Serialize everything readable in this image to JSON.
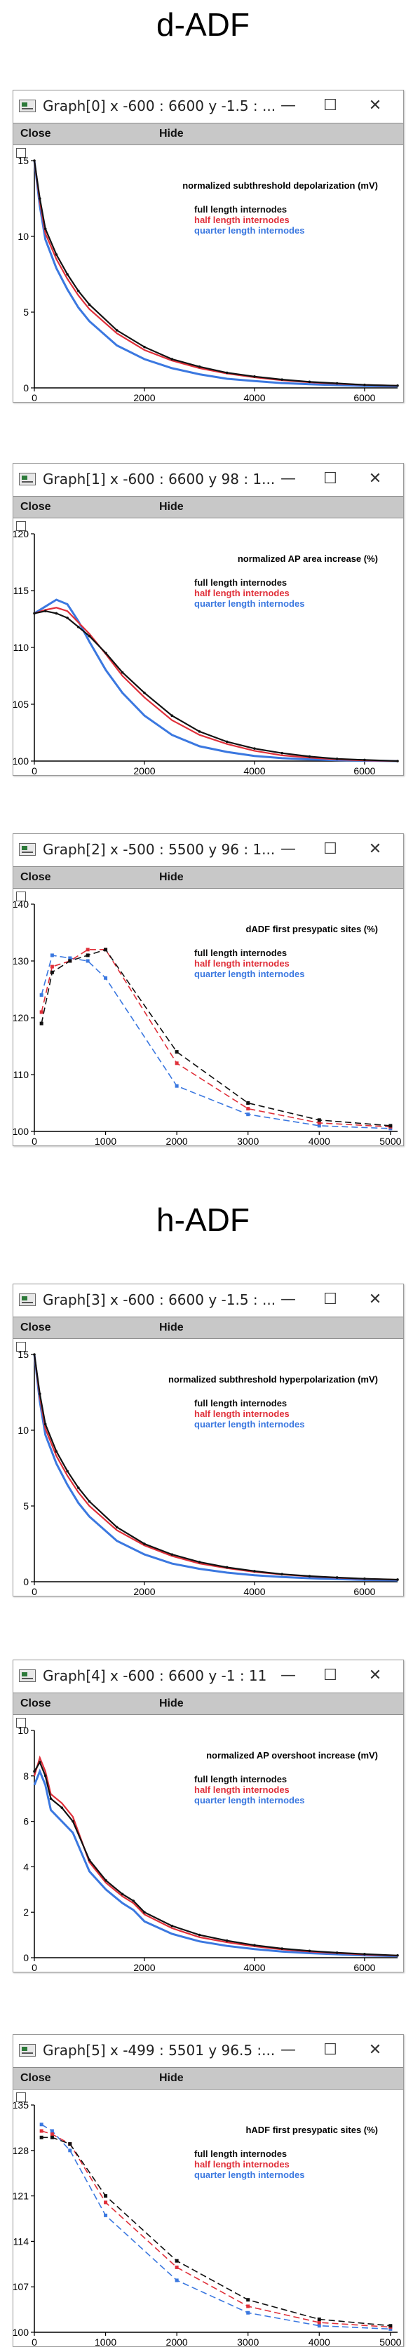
{
  "headings": {
    "dadf": "d-ADF",
    "hadf": "h-ADF"
  },
  "window_controls": {
    "minimize": "—",
    "maximize": "☐",
    "close": "✕"
  },
  "menu": {
    "close": "Close",
    "hide": "Hide"
  },
  "legend": {
    "full": "full length internodes",
    "half": "half length internodes",
    "quarter": "quarter length internodes"
  },
  "colors": {
    "full": "#111111",
    "half": "#e0303a",
    "quarter": "#3b78e0"
  },
  "chart_data": [
    {
      "type": "line",
      "window_title": "Graph[0]  x -600 : 6600  y -1.5 : ...",
      "title": "normalized subthreshold depolarization (mV)",
      "xlim": [
        0,
        6600
      ],
      "ylim": [
        0,
        15
      ],
      "xticks": [
        0,
        2000,
        4000,
        6000
      ],
      "yticks": [
        0,
        5,
        10,
        15
      ],
      "style": "curve",
      "series": [
        {
          "name": "full length internodes",
          "x": [
            0,
            100,
            200,
            400,
            600,
            800,
            1000,
            1500,
            2000,
            2500,
            3000,
            3500,
            4000,
            4500,
            5000,
            5500,
            6000,
            6600
          ],
          "y": [
            15,
            12.5,
            10.5,
            8.8,
            7.5,
            6.4,
            5.5,
            3.8,
            2.7,
            1.9,
            1.4,
            1.0,
            0.75,
            0.55,
            0.4,
            0.3,
            0.2,
            0.15
          ]
        },
        {
          "name": "half length internodes",
          "x": [
            0,
            100,
            200,
            400,
            600,
            800,
            1000,
            1500,
            2000,
            2500,
            3000,
            3500,
            4000,
            4500,
            5000,
            5500,
            6000,
            6600
          ],
          "y": [
            15,
            12.3,
            10.2,
            8.5,
            7.2,
            6.1,
            5.2,
            3.6,
            2.5,
            1.8,
            1.3,
            0.95,
            0.7,
            0.5,
            0.37,
            0.27,
            0.2,
            0.14
          ]
        },
        {
          "name": "quarter length internodes",
          "x": [
            0,
            100,
            200,
            400,
            600,
            800,
            1000,
            1500,
            2000,
            2500,
            3000,
            3500,
            4000,
            4500,
            5000,
            5500,
            6000,
            6600
          ],
          "y": [
            15,
            12.0,
            9.8,
            7.9,
            6.5,
            5.3,
            4.4,
            2.8,
            1.9,
            1.3,
            0.9,
            0.6,
            0.45,
            0.32,
            0.24,
            0.18,
            0.13,
            0.1
          ]
        }
      ]
    },
    {
      "type": "line",
      "window_title": "Graph[1]  x -600 : 6600  y 98 : 1...",
      "title": "normalized AP area increase (%)",
      "xlim": [
        0,
        6600
      ],
      "ylim": [
        100,
        120
      ],
      "xticks": [
        0,
        2000,
        4000,
        6000
      ],
      "yticks": [
        100,
        105,
        110,
        115,
        120
      ],
      "style": "curve",
      "series": [
        {
          "name": "full length internodes",
          "x": [
            0,
            200,
            400,
            600,
            800,
            1000,
            1300,
            1600,
            2000,
            2500,
            3000,
            3500,
            4000,
            4500,
            5000,
            5500,
            6000,
            6600
          ],
          "y": [
            113,
            113.2,
            113.0,
            112.6,
            111.8,
            111.0,
            109.5,
            107.8,
            106.0,
            104.0,
            102.6,
            101.7,
            101.1,
            100.7,
            100.4,
            100.2,
            100.1,
            100
          ]
        },
        {
          "name": "half length internodes",
          "x": [
            0,
            200,
            400,
            600,
            800,
            1000,
            1300,
            1600,
            2000,
            2500,
            3000,
            3500,
            4000,
            4500,
            5000,
            5500,
            6000,
            6600
          ],
          "y": [
            113,
            113.3,
            113.5,
            113.2,
            112.2,
            111.2,
            109.4,
            107.5,
            105.6,
            103.6,
            102.3,
            101.5,
            100.9,
            100.5,
            100.3,
            100.15,
            100.05,
            100
          ]
        },
        {
          "name": "quarter length internodes",
          "x": [
            0,
            200,
            400,
            600,
            800,
            1000,
            1300,
            1600,
            2000,
            2500,
            3000,
            3500,
            4000,
            4500,
            5000,
            5500,
            6000,
            6600
          ],
          "y": [
            113,
            113.6,
            114.2,
            113.8,
            112.3,
            110.5,
            108.0,
            106.0,
            104.0,
            102.3,
            101.3,
            100.8,
            100.45,
            100.25,
            100.15,
            100.08,
            100.03,
            100
          ]
        }
      ]
    },
    {
      "type": "line",
      "window_title": "Graph[2]  x -500 : 5500  y 96 : 1...",
      "title": "dADF first presypatic sites (%)",
      "xlim": [
        0,
        5100
      ],
      "ylim": [
        100,
        140
      ],
      "xticks": [
        0,
        1000,
        2000,
        3000,
        4000,
        5000
      ],
      "yticks": [
        100,
        110,
        120,
        130,
        140
      ],
      "style": "dashed-markers",
      "series": [
        {
          "name": "full length internodes",
          "x": [
            100,
            250,
            500,
            750,
            1000,
            2000,
            3000,
            4000,
            5000
          ],
          "y": [
            119,
            128,
            130,
            131,
            132,
            114,
            105,
            102,
            101
          ]
        },
        {
          "name": "half length internodes",
          "x": [
            100,
            250,
            500,
            750,
            1000,
            2000,
            3000,
            4000,
            5000
          ],
          "y": [
            121,
            129,
            130,
            132,
            132,
            112,
            104,
            101.5,
            100.8
          ]
        },
        {
          "name": "quarter length internodes",
          "x": [
            100,
            250,
            500,
            750,
            1000,
            2000,
            3000,
            4000,
            5000
          ],
          "y": [
            124,
            131,
            130.5,
            130,
            127,
            108,
            103,
            101,
            100.5
          ]
        }
      ]
    },
    {
      "type": "line",
      "window_title": "Graph[3]  x -600 : 6600  y -1.5 : ...",
      "title": "normalized subthreshold hyperpolarization (mV)",
      "xlim": [
        0,
        6600
      ],
      "ylim": [
        0,
        15
      ],
      "xticks": [
        0,
        2000,
        4000,
        6000
      ],
      "yticks": [
        0,
        5,
        10,
        15
      ],
      "style": "curve",
      "series": [
        {
          "name": "full length internodes",
          "x": [
            0,
            100,
            200,
            400,
            600,
            800,
            1000,
            1500,
            2000,
            2500,
            3000,
            3500,
            4000,
            4500,
            5000,
            5500,
            6000,
            6600
          ],
          "y": [
            15,
            12.4,
            10.4,
            8.6,
            7.3,
            6.2,
            5.3,
            3.6,
            2.5,
            1.8,
            1.3,
            0.95,
            0.7,
            0.5,
            0.37,
            0.28,
            0.2,
            0.14
          ]
        },
        {
          "name": "half length internodes",
          "x": [
            0,
            100,
            200,
            400,
            600,
            800,
            1000,
            1500,
            2000,
            2500,
            3000,
            3500,
            4000,
            4500,
            5000,
            5500,
            6000,
            6600
          ],
          "y": [
            15,
            12.2,
            10.1,
            8.3,
            7.0,
            5.9,
            5.0,
            3.4,
            2.4,
            1.7,
            1.2,
            0.9,
            0.65,
            0.48,
            0.35,
            0.26,
            0.19,
            0.13
          ]
        },
        {
          "name": "quarter length internodes",
          "x": [
            0,
            100,
            200,
            400,
            600,
            800,
            1000,
            1500,
            2000,
            2500,
            3000,
            3500,
            4000,
            4500,
            5000,
            5500,
            6000,
            6600
          ],
          "y": [
            15,
            11.9,
            9.7,
            7.8,
            6.4,
            5.2,
            4.3,
            2.7,
            1.8,
            1.2,
            0.85,
            0.6,
            0.43,
            0.31,
            0.23,
            0.17,
            0.12,
            0.09
          ]
        }
      ]
    },
    {
      "type": "line",
      "window_title": "Graph[4]  x -600 : 6600  y -1 : 11",
      "title": "normalized AP overshoot increase (mV)",
      "xlim": [
        0,
        6600
      ],
      "ylim": [
        0,
        10
      ],
      "xticks": [
        0,
        2000,
        4000,
        6000
      ],
      "yticks": [
        0,
        2,
        4,
        6,
        8,
        10
      ],
      "style": "curve",
      "series": [
        {
          "name": "full length internodes",
          "x": [
            0,
            100,
            200,
            300,
            500,
            700,
            1000,
            1300,
            1600,
            1800,
            2000,
            2500,
            3000,
            3500,
            4000,
            4500,
            5000,
            5500,
            6000,
            6600
          ],
          "y": [
            8.2,
            8.6,
            8.0,
            7.0,
            6.6,
            6.0,
            4.3,
            3.4,
            2.8,
            2.5,
            2.0,
            1.4,
            1.0,
            0.75,
            0.55,
            0.4,
            0.3,
            0.22,
            0.16,
            0.1
          ]
        },
        {
          "name": "half length internodes",
          "x": [
            0,
            100,
            200,
            300,
            500,
            700,
            1000,
            1300,
            1600,
            1800,
            2000,
            2500,
            3000,
            3500,
            4000,
            4500,
            5000,
            5500,
            6000,
            6600
          ],
          "y": [
            8.0,
            8.8,
            8.2,
            7.2,
            6.8,
            6.2,
            4.2,
            3.3,
            2.7,
            2.4,
            1.9,
            1.3,
            0.9,
            0.68,
            0.5,
            0.36,
            0.27,
            0.2,
            0.14,
            0.09
          ]
        },
        {
          "name": "quarter length internodes",
          "x": [
            0,
            100,
            200,
            300,
            500,
            700,
            1000,
            1300,
            1600,
            1800,
            2000,
            2500,
            3000,
            3500,
            4000,
            4500,
            5000,
            5500,
            6000,
            6600
          ],
          "y": [
            7.6,
            8.2,
            7.6,
            6.5,
            6.0,
            5.5,
            3.8,
            3.0,
            2.4,
            2.1,
            1.6,
            1.05,
            0.72,
            0.52,
            0.38,
            0.27,
            0.2,
            0.15,
            0.1,
            0.07
          ]
        }
      ]
    },
    {
      "type": "line",
      "window_title": "Graph[5]  x -499 : 5501  y 96.5 :...",
      "title": "hADF first presypatic sites (%)",
      "xlim": [
        0,
        5100
      ],
      "ylim": [
        100,
        135
      ],
      "xticks": [
        0,
        1000,
        2000,
        3000,
        4000,
        5000
      ],
      "yticks": [
        100,
        107,
        114,
        121,
        128,
        135
      ],
      "style": "dashed-markers",
      "series": [
        {
          "name": "full length internodes",
          "x": [
            100,
            250,
            500,
            1000,
            2000,
            3000,
            4000,
            5000
          ],
          "y": [
            130,
            130,
            129,
            121,
            111,
            105,
            102,
            101
          ]
        },
        {
          "name": "half length internodes",
          "x": [
            100,
            250,
            500,
            1000,
            2000,
            3000,
            4000,
            5000
          ],
          "y": [
            131,
            130.5,
            129,
            120,
            110,
            104,
            101.5,
            100.8
          ]
        },
        {
          "name": "quarter length internodes",
          "x": [
            100,
            250,
            500,
            1000,
            2000,
            3000,
            4000,
            5000
          ],
          "y": [
            132,
            131,
            128,
            118,
            108,
            103,
            101,
            100.5
          ]
        }
      ]
    }
  ]
}
